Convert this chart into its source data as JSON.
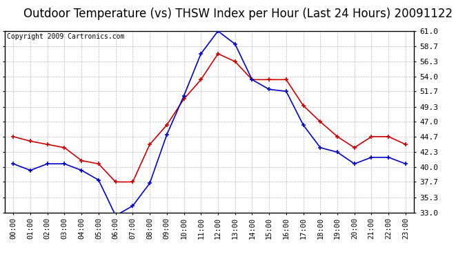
{
  "title": "Outdoor Temperature (vs) THSW Index per Hour (Last 24 Hours) 20091122",
  "copyright": "Copyright 2009 Cartronics.com",
  "hours": [
    "00:00",
    "01:00",
    "02:00",
    "03:00",
    "04:00",
    "05:00",
    "06:00",
    "07:00",
    "08:00",
    "09:00",
    "10:00",
    "11:00",
    "12:00",
    "13:00",
    "14:00",
    "15:00",
    "16:00",
    "17:00",
    "18:00",
    "19:00",
    "20:00",
    "21:00",
    "22:00",
    "23:00"
  ],
  "temp": [
    44.7,
    44.0,
    43.5,
    43.0,
    41.0,
    40.5,
    37.7,
    37.7,
    43.5,
    46.5,
    50.5,
    53.5,
    57.5,
    56.3,
    53.5,
    53.5,
    53.5,
    49.5,
    47.0,
    44.7,
    43.0,
    44.7,
    44.7,
    43.5
  ],
  "thsw": [
    40.5,
    39.5,
    40.5,
    40.5,
    39.5,
    38.0,
    32.5,
    34.0,
    37.5,
    45.0,
    51.0,
    57.5,
    61.0,
    59.0,
    53.5,
    52.0,
    51.7,
    46.5,
    43.0,
    42.3,
    40.5,
    41.5,
    41.5,
    40.5
  ],
  "y_ticks": [
    33.0,
    35.3,
    37.7,
    40.0,
    42.3,
    44.7,
    47.0,
    49.3,
    51.7,
    54.0,
    56.3,
    58.7,
    61.0
  ],
  "y_min": 33.0,
  "y_max": 61.0,
  "temp_color": "#cc0000",
  "thsw_color": "#0000cc",
  "bg_color": "#ffffff",
  "grid_color": "#aaaaaa",
  "title_fontsize": 12,
  "copyright_fontsize": 7
}
